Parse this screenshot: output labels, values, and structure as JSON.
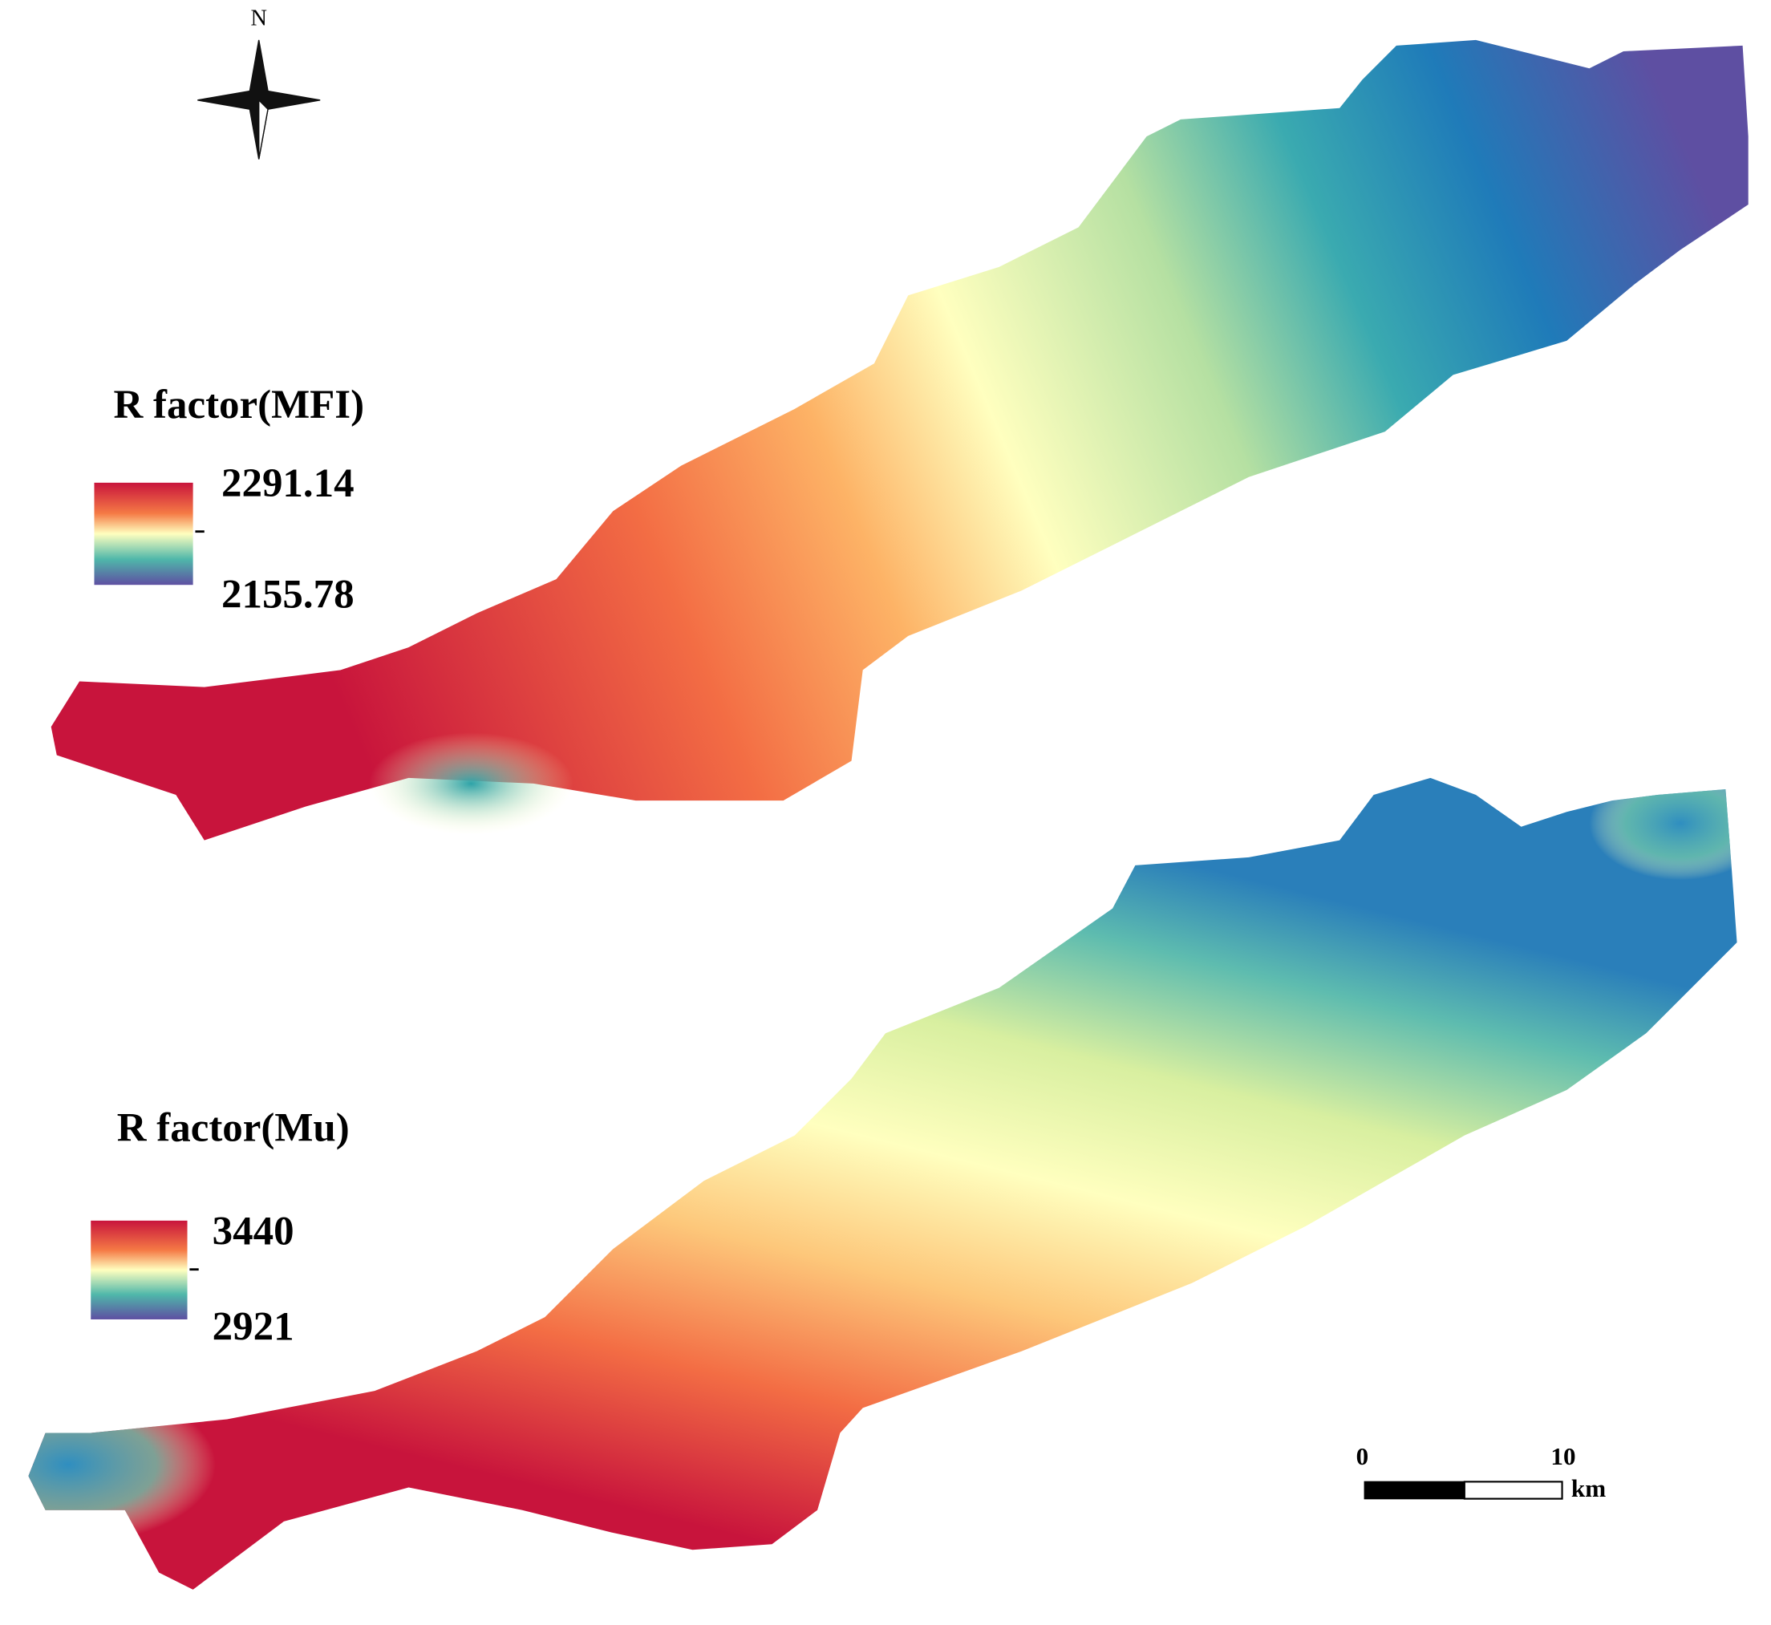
{
  "north_arrow": {
    "label": "N"
  },
  "maps": [
    {
      "legend": {
        "title": "R factor(MFI)",
        "max": 2291.14,
        "min": 2155.78
      }
    },
    {
      "legend": {
        "title": "R factor(Mu)",
        "max": 3440,
        "min": 2921
      }
    }
  ],
  "scale_bar": {
    "ticks": [
      0,
      10
    ],
    "unit": "km"
  }
}
